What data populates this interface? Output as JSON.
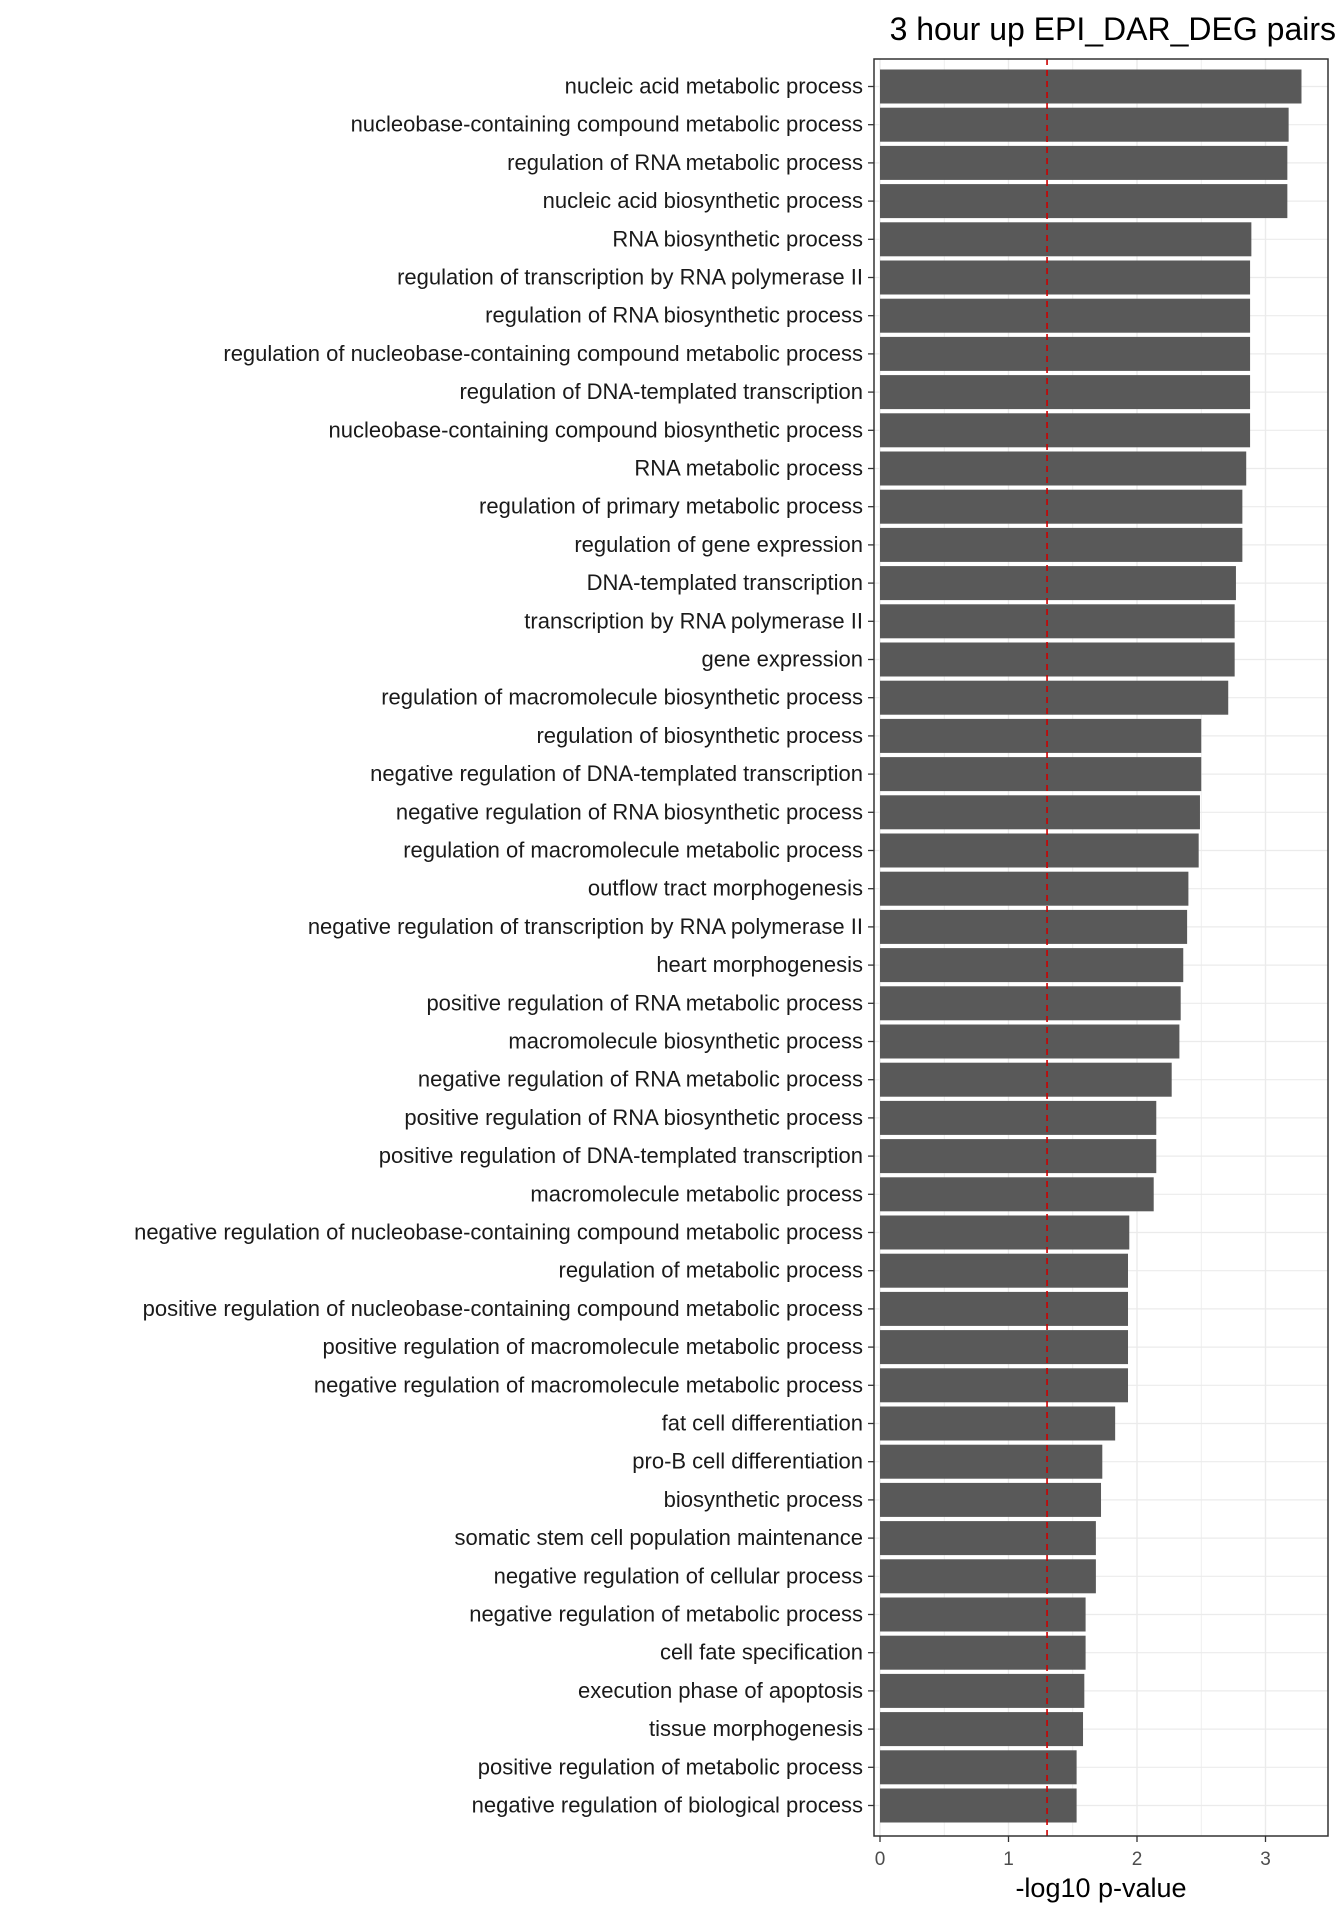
{
  "chart_data": {
    "type": "bar",
    "orientation": "horizontal",
    "title": "3 hour up EPI_DAR_DEG pairs",
    "xlabel": "-log10 p-value",
    "ylabel": "",
    "xlim": [
      0,
      3.45
    ],
    "x_ticks": [
      0,
      1,
      2,
      3
    ],
    "grid": true,
    "reference_line": {
      "x": 1.3,
      "color": "#cc0000",
      "style": "dashed"
    },
    "bar_color": "#595959",
    "categories": [
      "nucleic acid metabolic process",
      "nucleobase-containing compound metabolic process",
      "regulation of RNA metabolic process",
      "nucleic acid biosynthetic process",
      "RNA biosynthetic process",
      "regulation of transcription by RNA polymerase II",
      "regulation of RNA biosynthetic process",
      "regulation of nucleobase-containing compound metabolic process",
      "regulation of DNA-templated transcription",
      "nucleobase-containing compound biosynthetic process",
      "RNA metabolic process",
      "regulation of primary metabolic process",
      "regulation of gene expression",
      "DNA-templated transcription",
      "transcription by RNA polymerase II",
      "gene expression",
      "regulation of macromolecule biosynthetic process",
      "regulation of biosynthetic process",
      "negative regulation of DNA-templated transcription",
      "negative regulation of RNA biosynthetic process",
      "regulation of macromolecule metabolic process",
      "outflow tract morphogenesis",
      "negative regulation of transcription by RNA polymerase II",
      "heart morphogenesis",
      "positive regulation of RNA metabolic process",
      "macromolecule biosynthetic process",
      "negative regulation of RNA metabolic process",
      "positive regulation of RNA biosynthetic process",
      "positive regulation of DNA-templated transcription",
      "macromolecule metabolic process",
      "negative regulation of nucleobase-containing compound metabolic process",
      "regulation of metabolic process",
      "positive regulation of nucleobase-containing compound metabolic process",
      "positive regulation of macromolecule metabolic process",
      "negative regulation of macromolecule metabolic process",
      "fat cell differentiation",
      "pro-B cell differentiation",
      "biosynthetic process",
      "somatic stem cell population maintenance",
      "negative regulation of cellular process",
      "negative regulation of metabolic process",
      "cell fate specification",
      "execution phase of apoptosis",
      "tissue morphogenesis",
      "positive regulation of metabolic process",
      "negative regulation of biological process"
    ],
    "values": [
      3.28,
      3.18,
      3.17,
      3.17,
      2.89,
      2.88,
      2.88,
      2.88,
      2.88,
      2.88,
      2.85,
      2.82,
      2.82,
      2.77,
      2.76,
      2.76,
      2.71,
      2.5,
      2.5,
      2.49,
      2.48,
      2.4,
      2.39,
      2.36,
      2.34,
      2.33,
      2.27,
      2.15,
      2.15,
      2.13,
      1.94,
      1.93,
      1.93,
      1.93,
      1.93,
      1.83,
      1.73,
      1.72,
      1.68,
      1.68,
      1.6,
      1.6,
      1.59,
      1.58,
      1.53,
      1.53
    ]
  }
}
